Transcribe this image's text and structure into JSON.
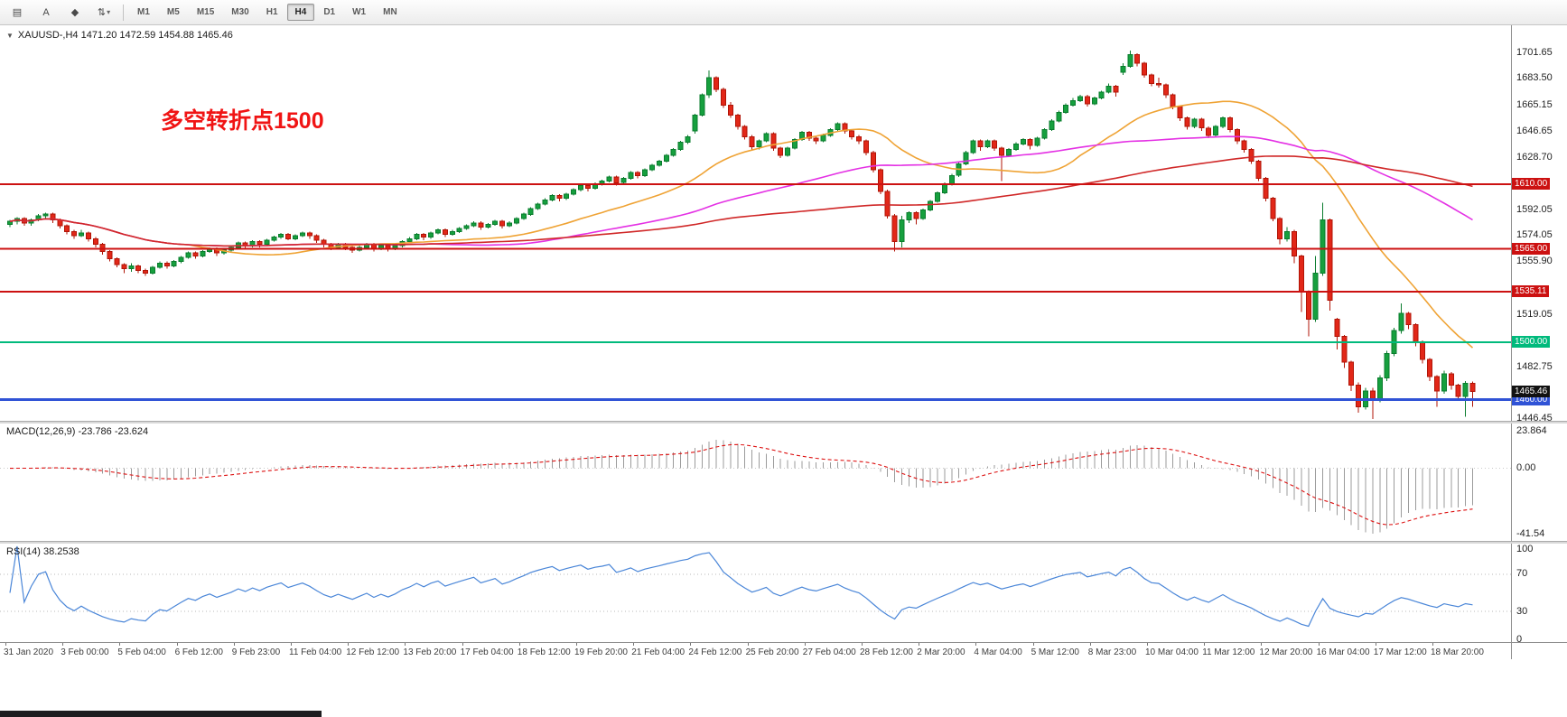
{
  "toolbar": {
    "tools": [
      {
        "name": "chart-window-icon",
        "glyph": "▤",
        "dropdown": false
      },
      {
        "name": "text-label-tool-icon",
        "glyph": "A",
        "dropdown": false
      },
      {
        "name": "drawing-tools-icon",
        "glyph": "◆",
        "dropdown": false
      },
      {
        "name": "indicators-icon",
        "glyph": "⇅",
        "dropdown": true
      }
    ],
    "timeframes": [
      "M1",
      "M5",
      "M15",
      "M30",
      "H1",
      "H4",
      "D1",
      "W1",
      "MN"
    ],
    "active_timeframe": "H4"
  },
  "main_chart": {
    "symbol_info": "XAUUSD-,H4 1471.20 1472.59 1454.88 1465.46",
    "annotation": "多空转折点1500",
    "annotation_color": "#f01414"
  },
  "chart_data": {
    "type": "candlestick",
    "symbol": "XAUUSD",
    "timeframe": "H4",
    "price_axis_ticks": [
      "1701.65",
      "1683.50",
      "1665.15",
      "1646.65",
      "1628.70",
      "1592.05",
      "1574.05",
      "1555.90",
      "1519.05",
      "1482.75",
      "1446.45"
    ],
    "hlines": [
      {
        "value": 1610.0,
        "label": "1610.00",
        "color": "#cc1111",
        "width": 2
      },
      {
        "value": 1565.0,
        "label": "1565.00",
        "color": "#cc1111",
        "width": 2
      },
      {
        "value": 1535.11,
        "label": "1535.11",
        "color": "#cc1111",
        "width": 2
      },
      {
        "value": 1500.0,
        "label": "1500.00",
        "color": "#00ba7c",
        "width": 2
      },
      {
        "value": 1460.0,
        "label": "1460.00",
        "color": "#3053d6",
        "width": 3
      }
    ],
    "current_price": {
      "value": 1465.46,
      "label": "1465.46",
      "color": "#111111"
    },
    "moving_averages": [
      {
        "period": 26,
        "color": "#efa335"
      },
      {
        "period": 60,
        "color": "#e431e4"
      },
      {
        "period": 120,
        "color": "#d02828"
      }
    ],
    "colors": {
      "bull": "#16a03e",
      "bull_edge": "#0a7c2d",
      "bear": "#e22718",
      "bear_edge": "#b01507"
    },
    "ohlc": [
      [
        1582,
        1585,
        1580,
        1584
      ],
      [
        1584,
        1587,
        1582,
        1586
      ],
      [
        1586,
        1587,
        1581,
        1583
      ],
      [
        1583,
        1586,
        1581,
        1585
      ],
      [
        1585,
        1589,
        1584,
        1588
      ],
      [
        1588,
        1590,
        1586,
        1589
      ],
      [
        1589,
        1590,
        1583,
        1585
      ],
      [
        1585,
        1586,
        1579,
        1581
      ],
      [
        1581,
        1582,
        1575,
        1577
      ],
      [
        1577,
        1578,
        1572,
        1574
      ],
      [
        1574,
        1578,
        1573,
        1576
      ],
      [
        1576,
        1577,
        1570,
        1572
      ],
      [
        1572,
        1573,
        1566,
        1568
      ],
      [
        1568,
        1569,
        1561,
        1563
      ],
      [
        1563,
        1564,
        1556,
        1558
      ],
      [
        1558,
        1559,
        1552,
        1554
      ],
      [
        1554,
        1555,
        1548,
        1551
      ],
      [
        1551,
        1555,
        1549,
        1553
      ],
      [
        1553,
        1554,
        1548,
        1550
      ],
      [
        1550,
        1551,
        1546,
        1548
      ],
      [
        1548,
        1553,
        1547,
        1552
      ],
      [
        1552,
        1556,
        1551,
        1555
      ],
      [
        1555,
        1556,
        1551,
        1553
      ],
      [
        1553,
        1557,
        1552,
        1556
      ],
      [
        1556,
        1560,
        1555,
        1559
      ],
      [
        1559,
        1563,
        1558,
        1562
      ],
      [
        1562,
        1563,
        1558,
        1560
      ],
      [
        1560,
        1564,
        1559,
        1563
      ],
      [
        1563,
        1566,
        1562,
        1565
      ],
      [
        1565,
        1566,
        1560,
        1562
      ],
      [
        1562,
        1565,
        1561,
        1564
      ],
      [
        1564,
        1567,
        1563,
        1566
      ],
      [
        1566,
        1570,
        1565,
        1569
      ],
      [
        1569,
        1570,
        1565,
        1567
      ],
      [
        1567,
        1571,
        1566,
        1570
      ],
      [
        1570,
        1571,
        1566,
        1568
      ],
      [
        1568,
        1572,
        1567,
        1571
      ],
      [
        1571,
        1574,
        1570,
        1573
      ],
      [
        1573,
        1576,
        1572,
        1575
      ],
      [
        1575,
        1576,
        1571,
        1572
      ],
      [
        1572,
        1575,
        1571,
        1574
      ],
      [
        1574,
        1577,
        1573,
        1576
      ],
      [
        1576,
        1577,
        1572,
        1574
      ],
      [
        1574,
        1575,
        1569,
        1571
      ],
      [
        1571,
        1572,
        1566,
        1568
      ],
      [
        1568,
        1569,
        1564,
        1566
      ],
      [
        1566,
        1569,
        1565,
        1568
      ],
      [
        1568,
        1569,
        1564,
        1566
      ],
      [
        1566,
        1567,
        1562,
        1564
      ],
      [
        1564,
        1567,
        1563,
        1566
      ],
      [
        1566,
        1569,
        1565,
        1568
      ],
      [
        1568,
        1569,
        1563,
        1565
      ],
      [
        1565,
        1568,
        1564,
        1567
      ],
      [
        1567,
        1568,
        1563,
        1565
      ],
      [
        1565,
        1568,
        1564,
        1567
      ],
      [
        1567,
        1571,
        1566,
        1570
      ],
      [
        1570,
        1573,
        1569,
        1572
      ],
      [
        1572,
        1576,
        1571,
        1575
      ],
      [
        1575,
        1576,
        1571,
        1573
      ],
      [
        1573,
        1577,
        1572,
        1576
      ],
      [
        1576,
        1579,
        1575,
        1578
      ],
      [
        1578,
        1579,
        1573,
        1575
      ],
      [
        1575,
        1578,
        1574,
        1577
      ],
      [
        1577,
        1580,
        1576,
        1579
      ],
      [
        1579,
        1582,
        1578,
        1581
      ],
      [
        1581,
        1584,
        1580,
        1583
      ],
      [
        1583,
        1584,
        1578,
        1580
      ],
      [
        1580,
        1583,
        1579,
        1582
      ],
      [
        1582,
        1585,
        1581,
        1584
      ],
      [
        1584,
        1585,
        1579,
        1581
      ],
      [
        1581,
        1584,
        1580,
        1583
      ],
      [
        1583,
        1587,
        1582,
        1586
      ],
      [
        1586,
        1590,
        1585,
        1589
      ],
      [
        1589,
        1594,
        1588,
        1593
      ],
      [
        1593,
        1597,
        1592,
        1596
      ],
      [
        1596,
        1600,
        1595,
        1599
      ],
      [
        1599,
        1603,
        1598,
        1602
      ],
      [
        1602,
        1603,
        1598,
        1600
      ],
      [
        1600,
        1604,
        1599,
        1603
      ],
      [
        1603,
        1607,
        1602,
        1606
      ],
      [
        1606,
        1610,
        1605,
        1609
      ],
      [
        1609,
        1610,
        1605,
        1607
      ],
      [
        1607,
        1611,
        1606,
        1610
      ],
      [
        1610,
        1613,
        1609,
        1612
      ],
      [
        1612,
        1616,
        1611,
        1615
      ],
      [
        1615,
        1616,
        1609,
        1611
      ],
      [
        1611,
        1615,
        1610,
        1614
      ],
      [
        1614,
        1619,
        1613,
        1618
      ],
      [
        1618,
        1619,
        1614,
        1616
      ],
      [
        1616,
        1621,
        1615,
        1620
      ],
      [
        1620,
        1624,
        1619,
        1623
      ],
      [
        1623,
        1627,
        1622,
        1626
      ],
      [
        1626,
        1631,
        1625,
        1630
      ],
      [
        1630,
        1635,
        1629,
        1634
      ],
      [
        1634,
        1640,
        1633,
        1639
      ],
      [
        1639,
        1644,
        1638,
        1643
      ],
      [
        1647,
        1659,
        1645,
        1658
      ],
      [
        1658,
        1673,
        1657,
        1672
      ],
      [
        1672,
        1689,
        1670,
        1684
      ],
      [
        1684,
        1685,
        1674,
        1676
      ],
      [
        1676,
        1677,
        1663,
        1665
      ],
      [
        1665,
        1667,
        1656,
        1658
      ],
      [
        1658,
        1659,
        1648,
        1650
      ],
      [
        1650,
        1651,
        1641,
        1643
      ],
      [
        1643,
        1644,
        1634,
        1636
      ],
      [
        1636,
        1641,
        1634,
        1640
      ],
      [
        1640,
        1646,
        1639,
        1645
      ],
      [
        1645,
        1646,
        1633,
        1635
      ],
      [
        1635,
        1636,
        1628,
        1630
      ],
      [
        1630,
        1636,
        1629,
        1635
      ],
      [
        1635,
        1642,
        1634,
        1641
      ],
      [
        1641,
        1647,
        1640,
        1646
      ],
      [
        1646,
        1647,
        1640,
        1642
      ],
      [
        1642,
        1643,
        1638,
        1640
      ],
      [
        1640,
        1645,
        1639,
        1644
      ],
      [
        1644,
        1649,
        1643,
        1648
      ],
      [
        1648,
        1653,
        1647,
        1652
      ],
      [
        1652,
        1653,
        1645,
        1647
      ],
      [
        1647,
        1648,
        1641,
        1643
      ],
      [
        1643,
        1644,
        1638,
        1640
      ],
      [
        1640,
        1641,
        1630,
        1632
      ],
      [
        1632,
        1633,
        1618,
        1620
      ],
      [
        1620,
        1621,
        1603,
        1605
      ],
      [
        1605,
        1606,
        1586,
        1588
      ],
      [
        1588,
        1589,
        1563,
        1570
      ],
      [
        1570,
        1588,
        1566,
        1585
      ],
      [
        1585,
        1591,
        1583,
        1590
      ],
      [
        1590,
        1591,
        1582,
        1586
      ],
      [
        1586,
        1593,
        1585,
        1592
      ],
      [
        1592,
        1599,
        1591,
        1598
      ],
      [
        1598,
        1605,
        1597,
        1604
      ],
      [
        1604,
        1611,
        1603,
        1610
      ],
      [
        1610,
        1617,
        1609,
        1616
      ],
      [
        1616,
        1625,
        1615,
        1624
      ],
      [
        1624,
        1633,
        1623,
        1632
      ],
      [
        1632,
        1641,
        1631,
        1640
      ],
      [
        1640,
        1641,
        1633,
        1636
      ],
      [
        1636,
        1641,
        1635,
        1640
      ],
      [
        1640,
        1641,
        1633,
        1635
      ],
      [
        1635,
        1636,
        1612,
        1630
      ],
      [
        1630,
        1635,
        1629,
        1634
      ],
      [
        1634,
        1639,
        1633,
        1638
      ],
      [
        1638,
        1642,
        1637,
        1641
      ],
      [
        1641,
        1642,
        1634,
        1637
      ],
      [
        1637,
        1643,
        1636,
        1642
      ],
      [
        1642,
        1649,
        1641,
        1648
      ],
      [
        1648,
        1655,
        1647,
        1654
      ],
      [
        1654,
        1661,
        1653,
        1660
      ],
      [
        1660,
        1666,
        1659,
        1665
      ],
      [
        1665,
        1670,
        1664,
        1668
      ],
      [
        1668,
        1672,
        1667,
        1671
      ],
      [
        1671,
        1672,
        1664,
        1666
      ],
      [
        1666,
        1671,
        1665,
        1670
      ],
      [
        1670,
        1675,
        1669,
        1674
      ],
      [
        1674,
        1680,
        1673,
        1678
      ],
      [
        1678,
        1679,
        1671,
        1674
      ],
      [
        1688,
        1694,
        1686,
        1692
      ],
      [
        1692,
        1703,
        1691,
        1700
      ],
      [
        1700,
        1701,
        1692,
        1694
      ],
      [
        1694,
        1695,
        1684,
        1686
      ],
      [
        1686,
        1687,
        1678,
        1680
      ],
      [
        1680,
        1684,
        1677,
        1679
      ],
      [
        1679,
        1680,
        1670,
        1672
      ],
      [
        1672,
        1673,
        1662,
        1664
      ],
      [
        1664,
        1665,
        1654,
        1656
      ],
      [
        1656,
        1657,
        1648,
        1650
      ],
      [
        1650,
        1656,
        1649,
        1655
      ],
      [
        1655,
        1656,
        1647,
        1649
      ],
      [
        1649,
        1650,
        1642,
        1644
      ],
      [
        1644,
        1651,
        1643,
        1650
      ],
      [
        1650,
        1657,
        1649,
        1656
      ],
      [
        1656,
        1657,
        1646,
        1648
      ],
      [
        1648,
        1649,
        1638,
        1640
      ],
      [
        1640,
        1641,
        1632,
        1634
      ],
      [
        1634,
        1635,
        1624,
        1626
      ],
      [
        1626,
        1627,
        1612,
        1614
      ],
      [
        1614,
        1615,
        1598,
        1600
      ],
      [
        1600,
        1601,
        1584,
        1586
      ],
      [
        1586,
        1587,
        1568,
        1572
      ],
      [
        1572,
        1580,
        1570,
        1577
      ],
      [
        1577,
        1578,
        1555,
        1560
      ],
      [
        1560,
        1561,
        1521,
        1535
      ],
      [
        1535,
        1536,
        1504,
        1516
      ],
      [
        1516,
        1560,
        1514,
        1548
      ],
      [
        1548,
        1597,
        1546,
        1585
      ],
      [
        1585,
        1586,
        1522,
        1529
      ],
      [
        1516,
        1517,
        1495,
        1504
      ],
      [
        1504,
        1505,
        1482,
        1486
      ],
      [
        1486,
        1487,
        1466,
        1470
      ],
      [
        1470,
        1472,
        1451,
        1455
      ],
      [
        1455,
        1468,
        1453,
        1466
      ],
      [
        1466,
        1468,
        1446.5,
        1460
      ],
      [
        1460,
        1477,
        1458,
        1475
      ],
      [
        1475,
        1494,
        1473,
        1492
      ],
      [
        1492,
        1510,
        1490,
        1508
      ],
      [
        1508,
        1527,
        1506,
        1520
      ],
      [
        1520,
        1521,
        1509,
        1512
      ],
      [
        1512,
        1513,
        1497,
        1500
      ],
      [
        1500,
        1501,
        1485,
        1488
      ],
      [
        1488,
        1489,
        1473,
        1476
      ],
      [
        1476,
        1477,
        1455,
        1466
      ],
      [
        1466,
        1480,
        1464,
        1478
      ],
      [
        1478,
        1479,
        1467,
        1470
      ],
      [
        1470,
        1471,
        1459,
        1462
      ],
      [
        1462,
        1473,
        1448,
        1471.2
      ],
      [
        1471.2,
        1472.59,
        1454.88,
        1465.46
      ]
    ]
  },
  "macd": {
    "label": "MACD(12,26,9) -23.786 -23.624",
    "fast": 12,
    "slow": 26,
    "signal_period": 9,
    "axis": [
      "23.864",
      "0.00",
      "-41.54"
    ],
    "colors": {
      "histogram": "#9b9b9b",
      "signal": "#dd1111"
    }
  },
  "rsi": {
    "label": "RSI(14) 38.2538",
    "period": 14,
    "levels": [
      70,
      30
    ],
    "axis": [
      "100",
      "70",
      "30",
      "0"
    ],
    "color": "#4a86d8"
  },
  "time_axis": {
    "labels": [
      "31 Jan 2020",
      "3 Feb 00:00",
      "5 Feb 04:00",
      "6 Feb 12:00",
      "9 Feb 23:00",
      "11 Feb 04:00",
      "12 Feb 12:00",
      "13 Feb 20:00",
      "17 Feb 04:00",
      "18 Feb 12:00",
      "19 Feb 20:00",
      "21 Feb 04:00",
      "24 Feb 12:00",
      "25 Feb 20:00",
      "27 Feb 04:00",
      "28 Feb 12:00",
      "2 Mar 20:00",
      "4 Mar 04:00",
      "5 Mar 12:00",
      "8 Mar 23:00",
      "10 Mar 04:00",
      "11 Mar 12:00",
      "12 Mar 20:00",
      "16 Mar 04:00",
      "17 Mar 12:00",
      "18 Mar 20:00"
    ]
  }
}
